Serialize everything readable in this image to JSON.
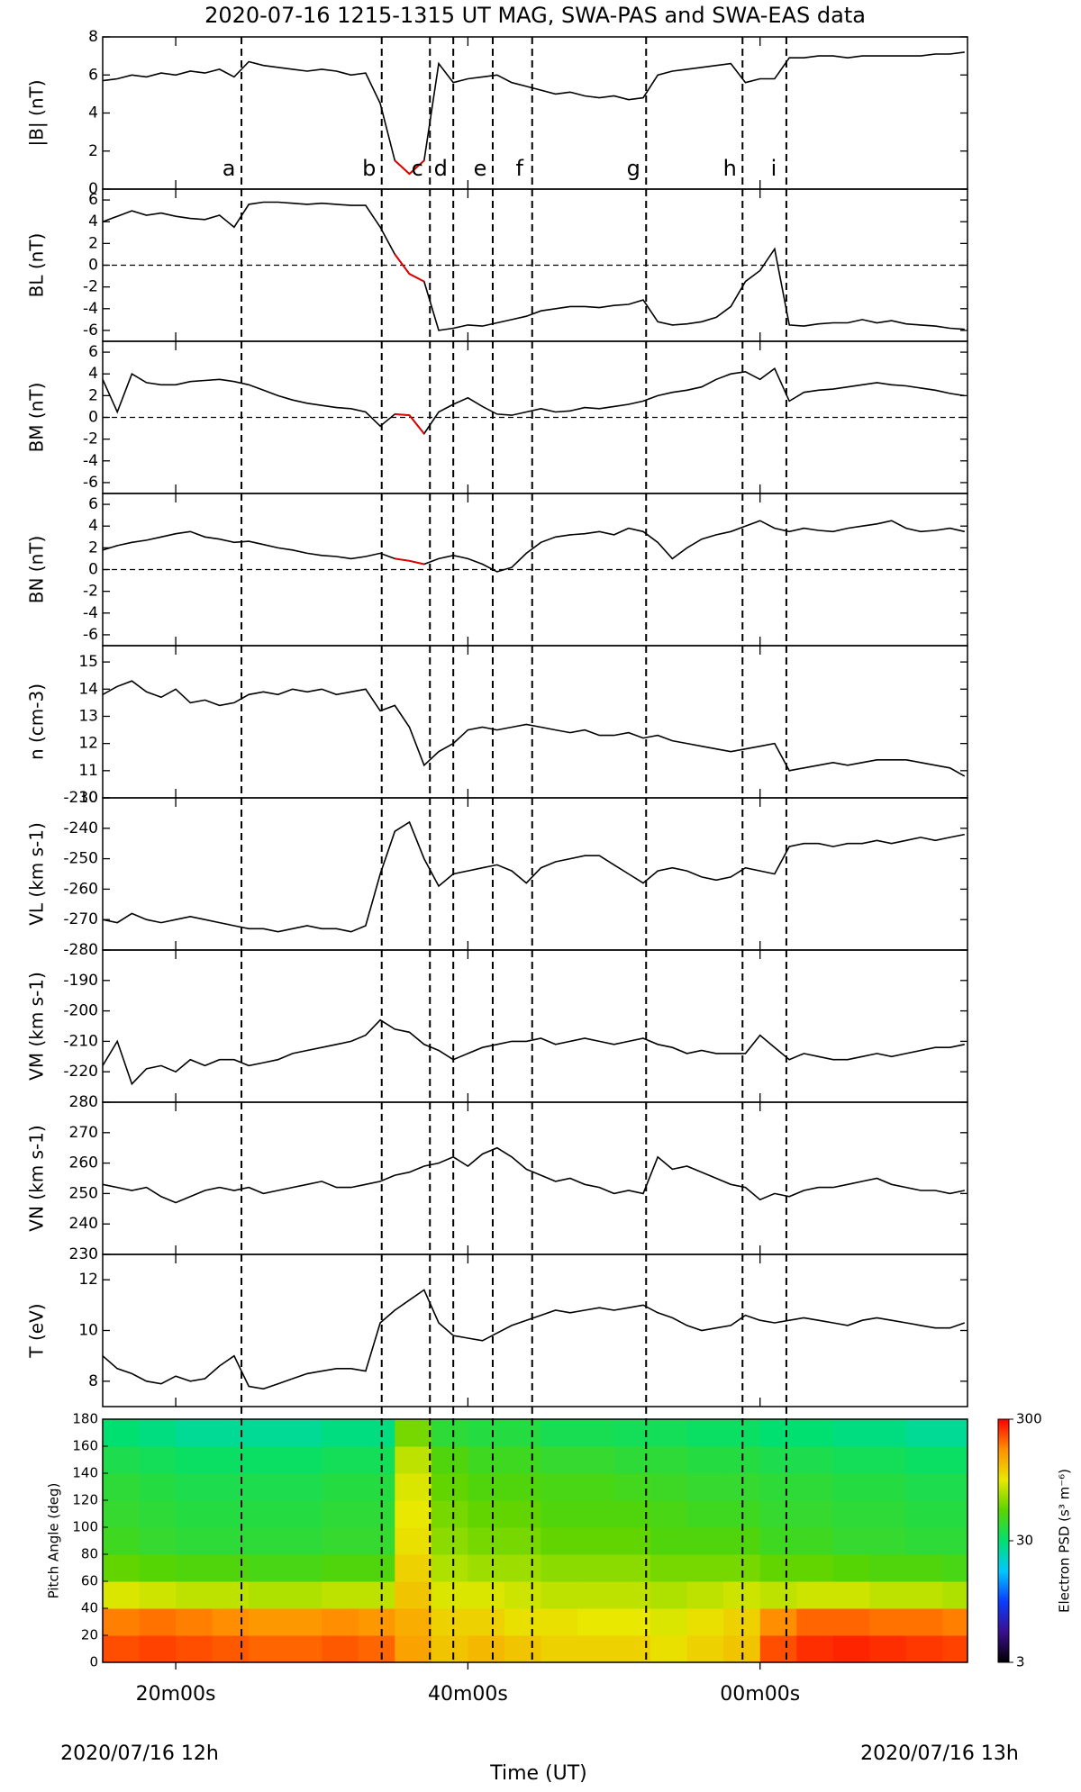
{
  "chart_data": {
    "type": "line",
    "title": "2020-07-16 1215-1315 UT MAG, SWA-PAS and SWA-EAS data",
    "xlabel": "Time (UT)",
    "date_left": "2020/07/16 12h",
    "date_right": "2020/07/16 13h",
    "xlim": [
      15,
      74.2
    ],
    "xticks": [
      {
        "value": 20,
        "label": "20m00s"
      },
      {
        "value": 40,
        "label": "40m00s"
      },
      {
        "value": 60,
        "label": "00m00s"
      }
    ],
    "highlight": {
      "range": [
        34.1,
        37.4
      ],
      "color": "#e00000"
    },
    "events": [
      {
        "label": "a",
        "x": 24.5
      },
      {
        "label": "b",
        "x": 34.1
      },
      {
        "label": "c",
        "x": 37.4
      },
      {
        "label": "d",
        "x": 39.0
      },
      {
        "label": "e",
        "x": 41.7
      },
      {
        "label": "f",
        "x": 44.4
      },
      {
        "label": "g",
        "x": 52.2
      },
      {
        "label": "h",
        "x": 58.8
      },
      {
        "label": "i",
        "x": 61.8
      }
    ],
    "x": [
      15,
      16,
      17,
      18,
      19,
      20,
      21,
      22,
      23,
      24,
      25,
      26,
      27,
      28,
      29,
      30,
      31,
      32,
      33,
      34,
      35,
      36,
      37,
      38,
      39,
      40,
      41,
      42,
      43,
      44,
      45,
      46,
      47,
      48,
      49,
      50,
      51,
      52,
      53,
      54,
      55,
      56,
      57,
      58,
      59,
      60,
      61,
      62,
      63,
      64,
      65,
      66,
      67,
      68,
      69,
      70,
      71,
      72,
      73,
      74
    ],
    "panels": [
      {
        "ylabel": "|B| (nT)",
        "ylim": [
          0,
          8
        ],
        "yticks": [
          0,
          2,
          4,
          6,
          8
        ],
        "color": "#000000",
        "highlighted": true,
        "zero_line": false,
        "values": [
          5.7,
          5.8,
          6.0,
          5.9,
          6.1,
          6.0,
          6.2,
          6.1,
          6.3,
          5.9,
          6.7,
          6.5,
          6.4,
          6.3,
          6.2,
          6.3,
          6.2,
          6.0,
          6.1,
          4.5,
          1.5,
          0.8,
          1.5,
          6.6,
          5.6,
          5.8,
          5.9,
          6.0,
          5.6,
          5.4,
          5.2,
          5.0,
          5.1,
          4.9,
          4.8,
          4.9,
          4.7,
          4.8,
          6.0,
          6.2,
          6.3,
          6.4,
          6.5,
          6.6,
          5.6,
          5.8,
          5.8,
          6.9,
          6.9,
          7.0,
          7.0,
          6.9,
          7.0,
          7.0,
          7.0,
          7.0,
          7.0,
          7.1,
          7.1,
          7.2
        ]
      },
      {
        "ylabel": "BL (nT)",
        "ylim": [
          -7,
          7
        ],
        "yticks": [
          -6,
          -4,
          -2,
          0,
          2,
          4,
          6
        ],
        "color": "#000000",
        "highlighted": true,
        "zero_line": true,
        "values": [
          4.0,
          4.5,
          5.0,
          4.6,
          4.8,
          4.5,
          4.3,
          4.2,
          4.6,
          3.5,
          5.6,
          5.8,
          5.8,
          5.7,
          5.6,
          5.7,
          5.6,
          5.5,
          5.5,
          3.5,
          1.0,
          -0.8,
          -1.5,
          -6.0,
          -5.8,
          -5.5,
          -5.6,
          -5.3,
          -5.0,
          -4.7,
          -4.2,
          -4.0,
          -3.8,
          -3.8,
          -3.9,
          -3.7,
          -3.6,
          -3.2,
          -5.2,
          -5.5,
          -5.4,
          -5.2,
          -4.8,
          -3.8,
          -1.5,
          -0.5,
          1.5,
          -5.5,
          -5.6,
          -5.4,
          -5.3,
          -5.3,
          -5.0,
          -5.3,
          -5.1,
          -5.4,
          -5.5,
          -5.6,
          -5.8,
          -5.9
        ]
      },
      {
        "ylabel": "BM (nT)",
        "ylim": [
          -7,
          7
        ],
        "yticks": [
          -6,
          -4,
          -2,
          0,
          2,
          4,
          6
        ],
        "color": "#000000",
        "highlighted": true,
        "zero_line": true,
        "values": [
          3.5,
          0.5,
          4.0,
          3.2,
          3.0,
          3.0,
          3.3,
          3.4,
          3.5,
          3.3,
          3.0,
          2.5,
          2.0,
          1.6,
          1.3,
          1.1,
          0.9,
          0.8,
          0.5,
          -0.8,
          0.3,
          0.2,
          -1.5,
          0.5,
          1.2,
          1.8,
          1.0,
          0.3,
          0.2,
          0.5,
          0.8,
          0.5,
          0.6,
          0.9,
          0.8,
          1.0,
          1.2,
          1.5,
          2.0,
          2.3,
          2.5,
          2.8,
          3.5,
          4.0,
          4.2,
          3.5,
          4.5,
          1.5,
          2.3,
          2.5,
          2.6,
          2.8,
          3.0,
          3.2,
          3.0,
          2.9,
          2.7,
          2.5,
          2.2,
          2.0
        ]
      },
      {
        "ylabel": "BN (nT)",
        "ylim": [
          -7,
          7
        ],
        "yticks": [
          -6,
          -4,
          -2,
          0,
          2,
          4,
          6
        ],
        "color": "#000000",
        "highlighted": true,
        "zero_line": true,
        "values": [
          1.8,
          2.2,
          2.5,
          2.7,
          3.0,
          3.3,
          3.5,
          3.0,
          2.8,
          2.5,
          2.6,
          2.3,
          2.0,
          1.8,
          1.5,
          1.3,
          1.2,
          1.0,
          1.2,
          1.5,
          1.0,
          0.8,
          0.5,
          1.0,
          1.3,
          1.0,
          0.5,
          -0.2,
          0.2,
          1.5,
          2.5,
          3.0,
          3.2,
          3.3,
          3.5,
          3.2,
          3.8,
          3.5,
          2.5,
          1.0,
          2.0,
          2.8,
          3.2,
          3.5,
          4.0,
          4.5,
          3.8,
          3.5,
          3.8,
          3.6,
          3.5,
          3.8,
          4.0,
          4.2,
          4.5,
          3.8,
          3.5,
          3.6,
          3.8,
          3.5
        ]
      },
      {
        "ylabel": "n (cm-3)",
        "ylim": [
          10,
          15.6
        ],
        "yticks": [
          10,
          11,
          12,
          13,
          14,
          15
        ],
        "color": "#000000",
        "highlighted": false,
        "zero_line": false,
        "values": [
          13.8,
          14.1,
          14.3,
          13.9,
          13.7,
          14.0,
          13.5,
          13.6,
          13.4,
          13.5,
          13.8,
          13.9,
          13.8,
          14.0,
          13.9,
          14.0,
          13.8,
          13.9,
          14.0,
          13.2,
          13.4,
          12.6,
          11.2,
          11.7,
          12.0,
          12.5,
          12.6,
          12.5,
          12.6,
          12.7,
          12.6,
          12.5,
          12.4,
          12.5,
          12.3,
          12.3,
          12.4,
          12.2,
          12.3,
          12.1,
          12.0,
          11.9,
          11.8,
          11.7,
          11.8,
          11.9,
          12.0,
          11.0,
          11.1,
          11.2,
          11.3,
          11.2,
          11.3,
          11.4,
          11.4,
          11.4,
          11.3,
          11.2,
          11.1,
          10.8
        ]
      },
      {
        "ylabel": "VL (km s-1)",
        "ylim": [
          -280,
          -230
        ],
        "yticks": [
          -280,
          -270,
          -260,
          -250,
          -240,
          -230
        ],
        "color": "#000000",
        "highlighted": false,
        "zero_line": false,
        "values": [
          -270,
          -271,
          -268,
          -270,
          -271,
          -270,
          -269,
          -270,
          -271,
          -272,
          -273,
          -273,
          -274,
          -273,
          -272,
          -273,
          -273,
          -274,
          -272,
          -255,
          -241,
          -238,
          -250,
          -259,
          -255,
          -254,
          -253,
          -252,
          -254,
          -258,
          -253,
          -251,
          -250,
          -249,
          -249,
          -252,
          -255,
          -258,
          -254,
          -253,
          -254,
          -256,
          -257,
          -256,
          -253,
          -254,
          -255,
          -246,
          -245,
          -245,
          -246,
          -245,
          -245,
          -244,
          -245,
          -244,
          -243,
          -244,
          -243,
          -242
        ]
      },
      {
        "ylabel": "VM (km s-1)",
        "ylim": [
          -230,
          -180
        ],
        "yticks": [
          -220,
          -210,
          -200,
          -190
        ],
        "color": "#000000",
        "highlighted": false,
        "zero_line": false,
        "values": [
          -218,
          -210,
          -224,
          -219,
          -218,
          -220,
          -216,
          -218,
          -216,
          -216,
          -218,
          -217,
          -216,
          -214,
          -213,
          -212,
          -211,
          -210,
          -208,
          -203,
          -206,
          -207,
          -211,
          -213,
          -216,
          -214,
          -212,
          -211,
          -210,
          -210,
          -209,
          -211,
          -210,
          -209,
          -210,
          -211,
          -210,
          -209,
          -211,
          -212,
          -214,
          -213,
          -214,
          -214,
          -214,
          -208,
          -212,
          -216,
          -214,
          -215,
          -216,
          -216,
          -215,
          -214,
          -215,
          -214,
          -213,
          -212,
          -212,
          -211
        ]
      },
      {
        "ylabel": "VN (km s-1)",
        "ylim": [
          230,
          280
        ],
        "yticks": [
          230,
          240,
          250,
          260,
          270,
          280
        ],
        "color": "#000000",
        "highlighted": false,
        "zero_line": false,
        "values": [
          253,
          252,
          251,
          252,
          249,
          247,
          249,
          251,
          252,
          251,
          252,
          250,
          251,
          252,
          253,
          254,
          252,
          252,
          253,
          254,
          256,
          257,
          259,
          260,
          262,
          259,
          263,
          265,
          262,
          258,
          256,
          254,
          255,
          253,
          252,
          250,
          251,
          250,
          262,
          258,
          259,
          257,
          255,
          253,
          252,
          248,
          250,
          249,
          251,
          252,
          252,
          253,
          254,
          255,
          253,
          252,
          251,
          251,
          250,
          251
        ]
      },
      {
        "ylabel": "T (eV)",
        "ylim": [
          7,
          13
        ],
        "yticks": [
          8,
          10,
          12
        ],
        "color": "#000000",
        "highlighted": false,
        "zero_line": false,
        "values": [
          9.0,
          8.5,
          8.3,
          8.0,
          7.9,
          8.2,
          8.0,
          8.1,
          8.6,
          9.0,
          7.8,
          7.7,
          7.9,
          8.1,
          8.3,
          8.4,
          8.5,
          8.5,
          8.4,
          10.3,
          10.8,
          11.2,
          11.6,
          10.3,
          9.8,
          9.7,
          9.6,
          9.9,
          10.2,
          10.4,
          10.6,
          10.8,
          10.7,
          10.8,
          10.9,
          10.8,
          10.9,
          11.0,
          10.7,
          10.5,
          10.2,
          10.0,
          10.1,
          10.2,
          10.6,
          10.4,
          10.3,
          10.4,
          10.5,
          10.4,
          10.3,
          10.2,
          10.4,
          10.5,
          10.4,
          10.3,
          10.2,
          10.1,
          10.1,
          10.3
        ]
      }
    ],
    "spectrogram": {
      "type": "heatmap",
      "ylabel": "Pitch Angle (deg)",
      "ylim": [
        0,
        180
      ],
      "yticks": [
        0,
        20,
        40,
        60,
        80,
        100,
        120,
        140,
        160,
        180
      ],
      "time_bins": [
        15,
        17.5,
        20,
        22.5,
        25,
        27.5,
        30,
        32.5,
        35,
        37.5,
        40,
        42.5,
        45,
        47.5,
        50,
        52.5,
        55,
        57.5,
        60,
        62.5,
        65,
        67.5,
        70,
        72.5,
        75
      ],
      "pitch_bins": [
        0,
        20,
        40,
        60,
        80,
        100,
        120,
        140,
        160,
        180
      ],
      "clabel": "Electron PSD (s³ m⁻⁶)",
      "clim": [
        3,
        300
      ],
      "cticks": [
        3,
        30,
        300
      ],
      "log_color": true,
      "colormap": [
        "#000000",
        "#3b0f8f",
        "#0a3cff",
        "#00c8ff",
        "#00e070",
        "#5ad400",
        "#e8e800",
        "#ff9000",
        "#ff0000"
      ],
      "values": [
        [
          220,
          230,
          220,
          210,
          200,
          200,
          210,
          200,
          150,
          120,
          130,
          120,
          110,
          110,
          110,
          100,
          110,
          120,
          220,
          250,
          260,
          250,
          240,
          230
        ],
        [
          180,
          190,
          180,
          170,
          160,
          160,
          170,
          160,
          140,
          110,
          110,
          100,
          100,
          95,
          95,
          90,
          100,
          110,
          170,
          200,
          200,
          190,
          190,
          180
        ],
        [
          90,
          85,
          80,
          80,
          75,
          75,
          80,
          80,
          120,
          90,
          90,
          85,
          80,
          80,
          80,
          75,
          80,
          85,
          80,
          85,
          85,
          80,
          80,
          75
        ],
        [
          55,
          52,
          50,
          50,
          48,
          48,
          50,
          50,
          110,
          75,
          70,
          70,
          65,
          65,
          65,
          60,
          60,
          60,
          55,
          55,
          52,
          50,
          50,
          48
        ],
        [
          45,
          42,
          40,
          40,
          40,
          40,
          42,
          42,
          100,
          65,
          60,
          60,
          55,
          55,
          55,
          50,
          50,
          50,
          45,
          45,
          42,
          42,
          40,
          40
        ],
        [
          42,
          40,
          38,
          38,
          38,
          38,
          40,
          40,
          95,
          60,
          55,
          55,
          50,
          50,
          50,
          48,
          45,
          45,
          42,
          42,
          40,
          40,
          38,
          38
        ],
        [
          40,
          38,
          36,
          36,
          36,
          36,
          38,
          38,
          90,
          55,
          50,
          50,
          48,
          48,
          46,
          44,
          42,
          42,
          40,
          40,
          38,
          38,
          36,
          36
        ],
        [
          36,
          34,
          32,
          32,
          32,
          32,
          34,
          34,
          80,
          50,
          45,
          45,
          42,
          42,
          40,
          40,
          38,
          38,
          36,
          36,
          34,
          34,
          32,
          32
        ],
        [
          30,
          28,
          26,
          26,
          26,
          26,
          28,
          28,
          60,
          40,
          38,
          38,
          35,
          35,
          34,
          34,
          32,
          32,
          30,
          30,
          28,
          28,
          26,
          26
        ]
      ]
    }
  }
}
